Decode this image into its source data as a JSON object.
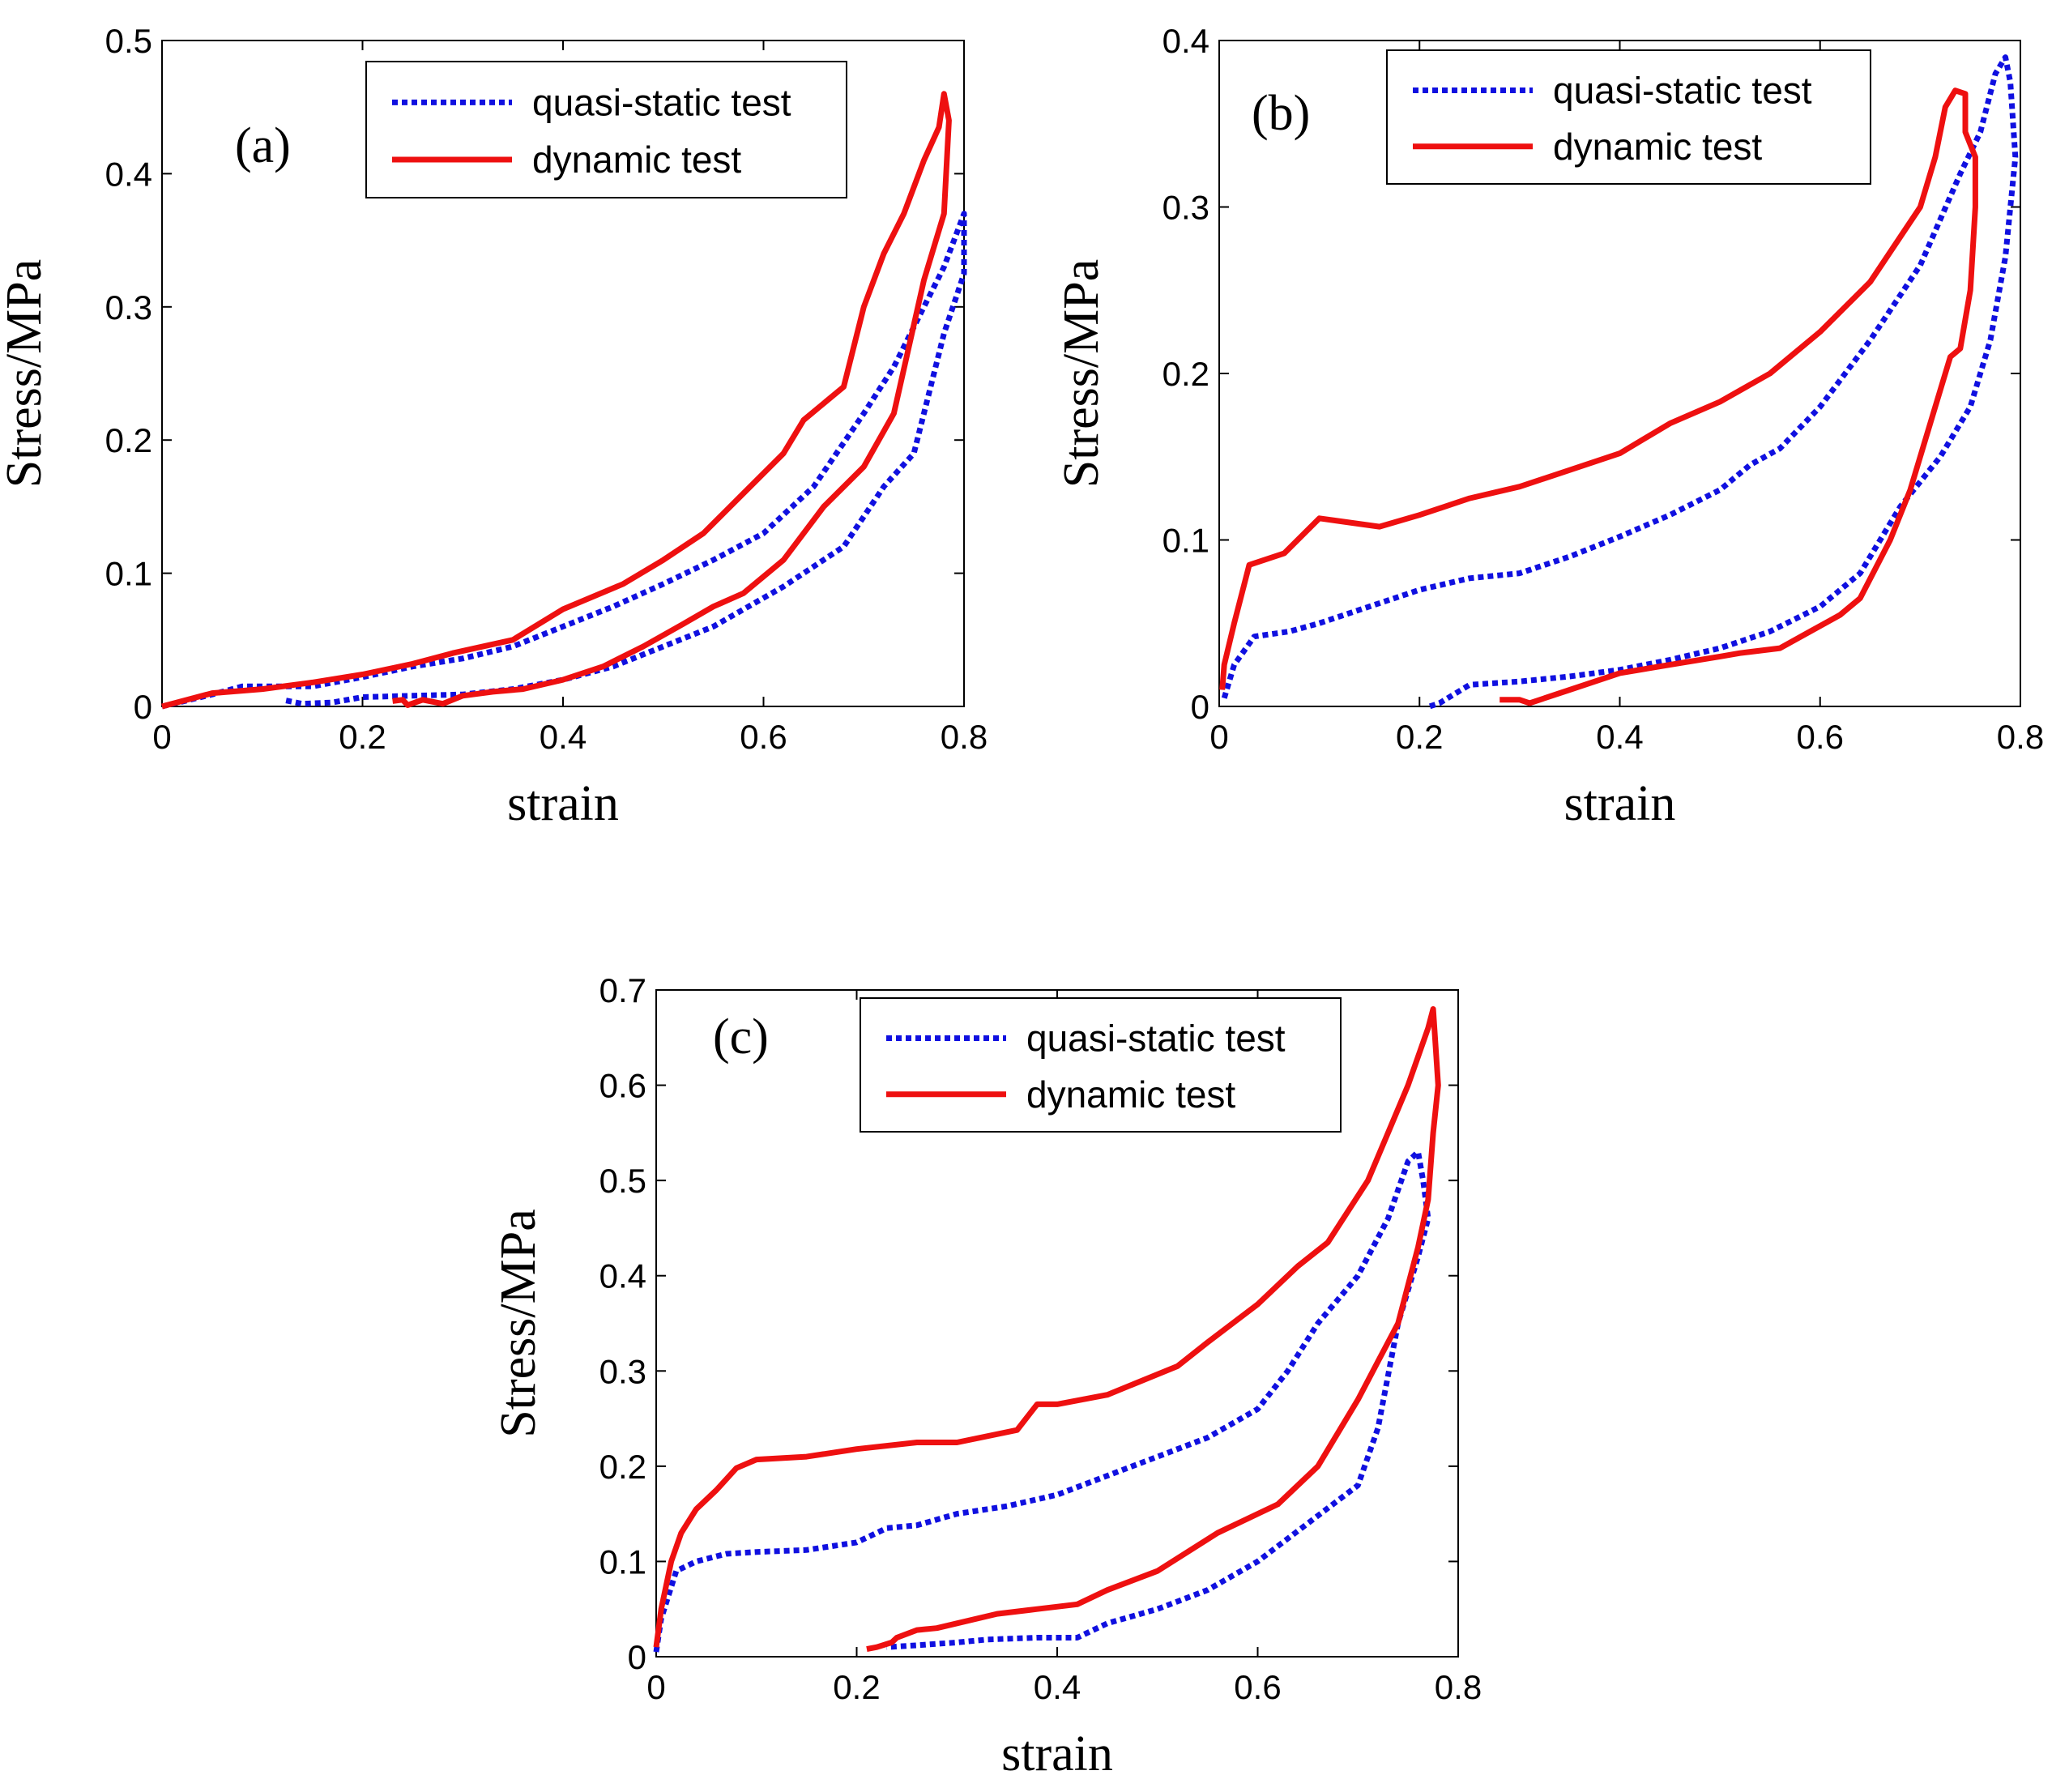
{
  "colors": {
    "quasi_static": "#1010e0",
    "dynamic": "#ee1010",
    "axes": "#000000",
    "background": "#ffffff"
  },
  "chart_data": [
    {
      "type": "line",
      "panel_label": "(a)",
      "xlabel": "strain",
      "ylabel": "Stress/MPa",
      "xlim": [
        0,
        0.8
      ],
      "ylim": [
        0,
        0.5
      ],
      "xticks": [
        "0",
        "0.2",
        "0.4",
        "0.6",
        "0.8"
      ],
      "yticks": [
        "0",
        "0.1",
        "0.2",
        "0.3",
        "0.4",
        "0.5"
      ],
      "legend_position": "top-right",
      "series": [
        {
          "name": "quasi-static test",
          "style": "dotted",
          "points": [
            [
              0,
              0
            ],
            [
              0.05,
              0.009
            ],
            [
              0.08,
              0.015
            ],
            [
              0.1,
              0.015
            ],
            [
              0.15,
              0.015
            ],
            [
              0.2,
              0.022
            ],
            [
              0.25,
              0.03
            ],
            [
              0.3,
              0.036
            ],
            [
              0.35,
              0.045
            ],
            [
              0.4,
              0.06
            ],
            [
              0.45,
              0.075
            ],
            [
              0.5,
              0.092
            ],
            [
              0.55,
              0.11
            ],
            [
              0.6,
              0.13
            ],
            [
              0.65,
              0.165
            ],
            [
              0.7,
              0.22
            ],
            [
              0.73,
              0.255
            ],
            [
              0.76,
              0.3
            ],
            [
              0.78,
              0.33
            ],
            [
              0.8,
              0.37
            ],
            [
              0.8,
              0.325
            ],
            [
              0.78,
              0.28
            ],
            [
              0.75,
              0.19
            ],
            [
              0.72,
              0.165
            ],
            [
              0.68,
              0.12
            ],
            [
              0.62,
              0.09
            ],
            [
              0.55,
              0.06
            ],
            [
              0.5,
              0.045
            ],
            [
              0.45,
              0.03
            ],
            [
              0.4,
              0.02
            ],
            [
              0.35,
              0.013
            ],
            [
              0.3,
              0.009
            ],
            [
              0.25,
              0.008
            ],
            [
              0.2,
              0.007
            ],
            [
              0.17,
              0.003
            ],
            [
              0.14,
              0.002
            ],
            [
              0.12,
              0.005
            ]
          ]
        },
        {
          "name": "dynamic test",
          "style": "solid",
          "points": [
            [
              0,
              0
            ],
            [
              0.05,
              0.01
            ],
            [
              0.1,
              0.013
            ],
            [
              0.15,
              0.018
            ],
            [
              0.2,
              0.024
            ],
            [
              0.25,
              0.032
            ],
            [
              0.29,
              0.04
            ],
            [
              0.35,
              0.05
            ],
            [
              0.4,
              0.073
            ],
            [
              0.46,
              0.092
            ],
            [
              0.5,
              0.11
            ],
            [
              0.54,
              0.13
            ],
            [
              0.58,
              0.16
            ],
            [
              0.62,
              0.19
            ],
            [
              0.64,
              0.215
            ],
            [
              0.68,
              0.24
            ],
            [
              0.7,
              0.3
            ],
            [
              0.72,
              0.34
            ],
            [
              0.74,
              0.37
            ],
            [
              0.76,
              0.41
            ],
            [
              0.775,
              0.435
            ],
            [
              0.78,
              0.46
            ],
            [
              0.785,
              0.44
            ],
            [
              0.78,
              0.37
            ],
            [
              0.76,
              0.32
            ],
            [
              0.73,
              0.22
            ],
            [
              0.7,
              0.18
            ],
            [
              0.66,
              0.15
            ],
            [
              0.62,
              0.11
            ],
            [
              0.58,
              0.085
            ],
            [
              0.55,
              0.075
            ],
            [
              0.52,
              0.062
            ],
            [
              0.48,
              0.045
            ],
            [
              0.44,
              0.03
            ],
            [
              0.4,
              0.02
            ],
            [
              0.36,
              0.013
            ],
            [
              0.33,
              0.011
            ],
            [
              0.3,
              0.008
            ],
            [
              0.28,
              0.002
            ],
            [
              0.26,
              0.005
            ],
            [
              0.245,
              0.001
            ],
            [
              0.24,
              0.005
            ],
            [
              0.23,
              0.004
            ]
          ]
        }
      ]
    },
    {
      "type": "line",
      "panel_label": "(b)",
      "xlabel": "strain",
      "ylabel": "Stress/MPa",
      "xlim": [
        0,
        0.8
      ],
      "ylim": [
        0,
        0.4
      ],
      "xticks": [
        "0",
        "0.2",
        "0.4",
        "0.6",
        "0.8"
      ],
      "yticks": [
        "0",
        "0.1",
        "0.2",
        "0.3",
        "0.4"
      ],
      "legend_position": "top-right",
      "series": [
        {
          "name": "quasi-static test",
          "style": "dotted",
          "points": [
            [
              0.005,
              0.005
            ],
            [
              0.015,
              0.025
            ],
            [
              0.035,
              0.042
            ],
            [
              0.07,
              0.045
            ],
            [
              0.1,
              0.05
            ],
            [
              0.15,
              0.06
            ],
            [
              0.2,
              0.07
            ],
            [
              0.25,
              0.077
            ],
            [
              0.3,
              0.08
            ],
            [
              0.35,
              0.09
            ],
            [
              0.4,
              0.102
            ],
            [
              0.45,
              0.115
            ],
            [
              0.5,
              0.13
            ],
            [
              0.53,
              0.145
            ],
            [
              0.56,
              0.155
            ],
            [
              0.6,
              0.18
            ],
            [
              0.65,
              0.22
            ],
            [
              0.7,
              0.265
            ],
            [
              0.74,
              0.32
            ],
            [
              0.76,
              0.345
            ],
            [
              0.775,
              0.38
            ],
            [
              0.785,
              0.39
            ],
            [
              0.79,
              0.375
            ],
            [
              0.795,
              0.33
            ],
            [
              0.785,
              0.27
            ],
            [
              0.77,
              0.22
            ],
            [
              0.75,
              0.18
            ],
            [
              0.72,
              0.15
            ],
            [
              0.68,
              0.12
            ],
            [
              0.64,
              0.08
            ],
            [
              0.6,
              0.06
            ],
            [
              0.55,
              0.045
            ],
            [
              0.5,
              0.035
            ],
            [
              0.45,
              0.028
            ],
            [
              0.4,
              0.022
            ],
            [
              0.35,
              0.018
            ],
            [
              0.3,
              0.015
            ],
            [
              0.25,
              0.013
            ],
            [
              0.22,
              0.002
            ],
            [
              0.21,
              0
            ]
          ]
        },
        {
          "name": "dynamic test",
          "style": "solid",
          "points": [
            [
              0.003,
              0.01
            ],
            [
              0.005,
              0.025
            ],
            [
              0.015,
              0.05
            ],
            [
              0.03,
              0.085
            ],
            [
              0.065,
              0.092
            ],
            [
              0.1,
              0.113
            ],
            [
              0.16,
              0.108
            ],
            [
              0.2,
              0.115
            ],
            [
              0.25,
              0.125
            ],
            [
              0.3,
              0.132
            ],
            [
              0.35,
              0.142
            ],
            [
              0.4,
              0.152
            ],
            [
              0.45,
              0.17
            ],
            [
              0.5,
              0.183
            ],
            [
              0.55,
              0.2
            ],
            [
              0.6,
              0.225
            ],
            [
              0.65,
              0.255
            ],
            [
              0.7,
              0.3
            ],
            [
              0.715,
              0.33
            ],
            [
              0.725,
              0.36
            ],
            [
              0.735,
              0.37
            ],
            [
              0.745,
              0.368
            ],
            [
              0.745,
              0.345
            ],
            [
              0.755,
              0.33
            ],
            [
              0.755,
              0.3
            ],
            [
              0.75,
              0.25
            ],
            [
              0.74,
              0.215
            ],
            [
              0.73,
              0.21
            ],
            [
              0.71,
              0.17
            ],
            [
              0.69,
              0.13
            ],
            [
              0.67,
              0.1
            ],
            [
              0.64,
              0.065
            ],
            [
              0.62,
              0.055
            ],
            [
              0.59,
              0.045
            ],
            [
              0.56,
              0.035
            ],
            [
              0.52,
              0.032
            ],
            [
              0.5,
              0.03
            ],
            [
              0.45,
              0.025
            ],
            [
              0.4,
              0.02
            ],
            [
              0.35,
              0.01
            ],
            [
              0.31,
              0.002
            ],
            [
              0.3,
              0.004
            ],
            [
              0.28,
              0.004
            ]
          ]
        }
      ]
    },
    {
      "type": "line",
      "panel_label": "(c)",
      "xlabel": "strain",
      "ylabel": "Stress/MPa",
      "xlim": [
        0,
        0.8
      ],
      "ylim": [
        0,
        0.7
      ],
      "xticks": [
        "0",
        "0.2",
        "0.4",
        "0.6",
        "0.8"
      ],
      "yticks": [
        "0",
        "0.1",
        "0.2",
        "0.3",
        "0.4",
        "0.5",
        "0.6",
        "0.7"
      ],
      "legend_position": "top-right",
      "series": [
        {
          "name": "quasi-static test",
          "style": "dotted",
          "points": [
            [
              0,
              0.005
            ],
            [
              0.005,
              0.04
            ],
            [
              0.02,
              0.09
            ],
            [
              0.04,
              0.1
            ],
            [
              0.07,
              0.108
            ],
            [
              0.1,
              0.11
            ],
            [
              0.15,
              0.112
            ],
            [
              0.2,
              0.12
            ],
            [
              0.23,
              0.135
            ],
            [
              0.26,
              0.138
            ],
            [
              0.3,
              0.15
            ],
            [
              0.35,
              0.158
            ],
            [
              0.4,
              0.17
            ],
            [
              0.45,
              0.19
            ],
            [
              0.5,
              0.21
            ],
            [
              0.55,
              0.23
            ],
            [
              0.6,
              0.26
            ],
            [
              0.63,
              0.3
            ],
            [
              0.66,
              0.35
            ],
            [
              0.7,
              0.4
            ],
            [
              0.73,
              0.46
            ],
            [
              0.75,
              0.52
            ],
            [
              0.76,
              0.53
            ],
            [
              0.765,
              0.5
            ],
            [
              0.77,
              0.46
            ],
            [
              0.76,
              0.42
            ],
            [
              0.74,
              0.35
            ],
            [
              0.72,
              0.24
            ],
            [
              0.7,
              0.18
            ],
            [
              0.65,
              0.14
            ],
            [
              0.6,
              0.1
            ],
            [
              0.55,
              0.07
            ],
            [
              0.5,
              0.05
            ],
            [
              0.45,
              0.035
            ],
            [
              0.42,
              0.02
            ],
            [
              0.38,
              0.02
            ],
            [
              0.33,
              0.018
            ],
            [
              0.3,
              0.015
            ],
            [
              0.26,
              0.012
            ],
            [
              0.23,
              0.01
            ]
          ]
        },
        {
          "name": "dynamic test",
          "style": "solid",
          "points": [
            [
              0,
              0.01
            ],
            [
              0.005,
              0.05
            ],
            [
              0.015,
              0.1
            ],
            [
              0.025,
              0.13
            ],
            [
              0.04,
              0.155
            ],
            [
              0.06,
              0.175
            ],
            [
              0.08,
              0.198
            ],
            [
              0.1,
              0.207
            ],
            [
              0.15,
              0.21
            ],
            [
              0.2,
              0.218
            ],
            [
              0.26,
              0.225
            ],
            [
              0.3,
              0.225
            ],
            [
              0.36,
              0.238
            ],
            [
              0.38,
              0.265
            ],
            [
              0.4,
              0.265
            ],
            [
              0.45,
              0.275
            ],
            [
              0.52,
              0.305
            ],
            [
              0.55,
              0.33
            ],
            [
              0.6,
              0.37
            ],
            [
              0.64,
              0.41
            ],
            [
              0.67,
              0.435
            ],
            [
              0.71,
              0.5
            ],
            [
              0.73,
              0.55
            ],
            [
              0.75,
              0.6
            ],
            [
              0.77,
              0.66
            ],
            [
              0.775,
              0.68
            ],
            [
              0.78,
              0.6
            ],
            [
              0.775,
              0.55
            ],
            [
              0.77,
              0.48
            ],
            [
              0.76,
              0.43
            ],
            [
              0.75,
              0.39
            ],
            [
              0.74,
              0.35
            ],
            [
              0.72,
              0.31
            ],
            [
              0.7,
              0.27
            ],
            [
              0.66,
              0.2
            ],
            [
              0.62,
              0.16
            ],
            [
              0.56,
              0.13
            ],
            [
              0.5,
              0.09
            ],
            [
              0.45,
              0.07
            ],
            [
              0.42,
              0.055
            ],
            [
              0.38,
              0.05
            ],
            [
              0.34,
              0.045
            ],
            [
              0.3,
              0.035
            ],
            [
              0.28,
              0.03
            ],
            [
              0.26,
              0.028
            ],
            [
              0.24,
              0.02
            ],
            [
              0.235,
              0.015
            ],
            [
              0.22,
              0.01
            ],
            [
              0.21,
              0.008
            ]
          ]
        }
      ]
    }
  ]
}
